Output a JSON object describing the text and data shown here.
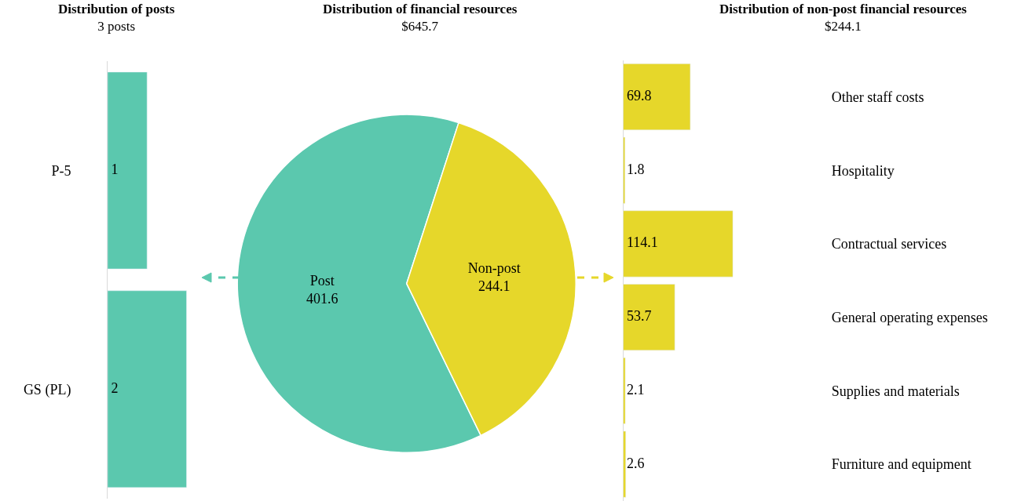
{
  "chart_data": [
    {
      "type": "bar",
      "orientation": "horizontal",
      "title": "Distribution of posts",
      "subtitle": "3 posts",
      "categories": [
        "P-5",
        "GS (PL)"
      ],
      "values": [
        1,
        2
      ],
      "color": "#5bc8ae",
      "data_labels": true,
      "tick_labels": "y"
    },
    {
      "type": "pie",
      "title": "Distribution of financial resources",
      "subtitle": "$645.7",
      "categories": [
        "Post",
        "Non-post"
      ],
      "values": [
        401.6,
        244.1
      ],
      "colors": [
        "#5bc8ae",
        "#e6d72a"
      ],
      "data_labels": true
    },
    {
      "type": "bar",
      "orientation": "horizontal",
      "title": "Distribution of non-post financial resources",
      "subtitle": "$244.1",
      "categories": [
        "Other staff costs",
        "Hospitality",
        "Contractual services",
        "General operating expenses",
        "Supplies and materials",
        "Furniture and equipment"
      ],
      "values": [
        69.8,
        1.8,
        114.1,
        53.7,
        2.1,
        2.6
      ],
      "color": "#e6d72a",
      "data_labels": true,
      "tick_labels": "y"
    }
  ]
}
